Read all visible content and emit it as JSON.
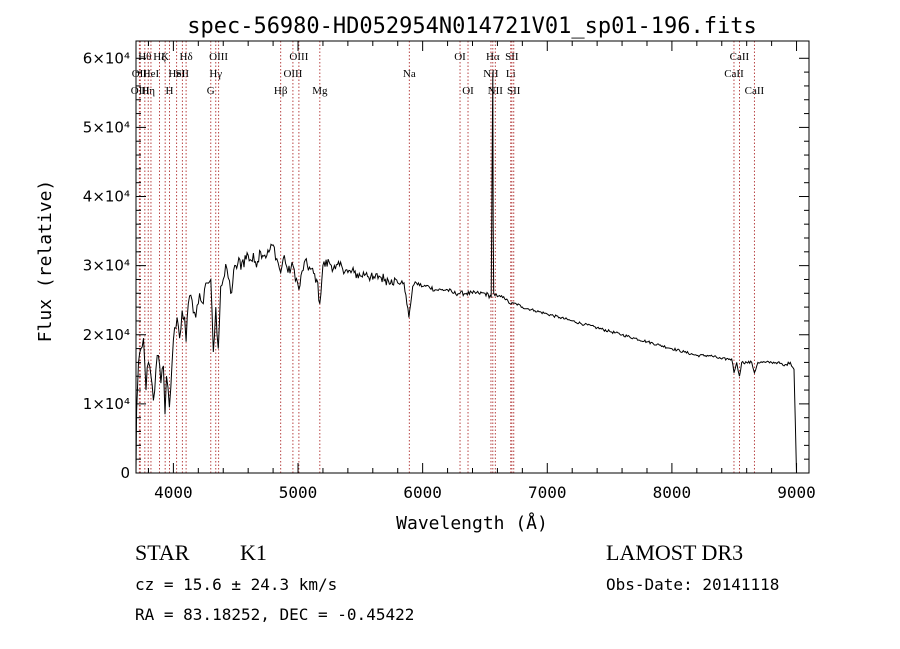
{
  "chart_data": {
    "type": "line",
    "title": "spec-56980-HD052954N014721V01_sp01-196.fits",
    "xlabel": "Wavelength (Å)",
    "ylabel": "Flux (relative)",
    "xlim": [
      3700,
      9100
    ],
    "ylim": [
      0,
      62500
    ],
    "x_ticks": [
      4000,
      5000,
      6000,
      7000,
      8000,
      9000
    ],
    "y_ticks": [
      {
        "value": 0,
        "label": "0"
      },
      {
        "value": 10000,
        "label": "1×10⁴"
      },
      {
        "value": 20000,
        "label": "2×10⁴"
      },
      {
        "value": 30000,
        "label": "3×10⁴"
      },
      {
        "value": 40000,
        "label": "4×10⁴"
      },
      {
        "value": 50000,
        "label": "5×10⁴"
      },
      {
        "value": 60000,
        "label": "6×10⁴"
      }
    ],
    "series": [
      {
        "name": "flux",
        "x": [
          3700,
          3705,
          3720,
          3740,
          3760,
          3780,
          3800,
          3820,
          3840,
          3860,
          3880,
          3900,
          3920,
          3933,
          3945,
          3968,
          3990,
          4010,
          4030,
          4050,
          4070,
          4090,
          4102,
          4120,
          4150,
          4180,
          4210,
          4240,
          4270,
          4300,
          4320,
          4340,
          4360,
          4380,
          4400,
          4430,
          4460,
          4500,
          4550,
          4600,
          4650,
          4700,
          4750,
          4800,
          4830,
          4861,
          4890,
          4920,
          4960,
          5007,
          5050,
          5100,
          5150,
          5175,
          5200,
          5250,
          5300,
          5350,
          5400,
          5450,
          5500,
          5550,
          5600,
          5650,
          5700,
          5750,
          5800,
          5850,
          5890,
          5896,
          5920,
          5950,
          6000,
          6050,
          6100,
          6150,
          6200,
          6250,
          6300,
          6350,
          6400,
          6450,
          6500,
          6550,
          6560,
          6563,
          6566,
          6570,
          6600,
          6650,
          6700,
          6750,
          6800,
          6900,
          7000,
          7100,
          7200,
          7300,
          7400,
          7500,
          7600,
          7700,
          7800,
          7900,
          8000,
          8100,
          8200,
          8300,
          8400,
          8480,
          8498,
          8520,
          8542,
          8560,
          8600,
          8640,
          8662,
          8690,
          8750,
          8800,
          8850,
          8900,
          8950,
          8980,
          9000
        ],
        "values": [
          0,
          9000,
          16000,
          18000,
          19500,
          12000,
          16000,
          14000,
          10500,
          15000,
          17000,
          13000,
          15500,
          8500,
          14000,
          9500,
          16000,
          21000,
          22500,
          19500,
          23500,
          22500,
          19000,
          24500,
          25000,
          22500,
          26000,
          24500,
          27500,
          28000,
          17500,
          24000,
          18000,
          27000,
          28000,
          29500,
          26000,
          30000,
          30500,
          31500,
          30500,
          32000,
          31500,
          33000,
          31000,
          29000,
          31500,
          29000,
          30000,
          26500,
          30500,
          29500,
          28000,
          24500,
          30000,
          30500,
          29500,
          30000,
          29000,
          29000,
          28500,
          29000,
          28000,
          28500,
          28000,
          28000,
          27500,
          27500,
          22500,
          23500,
          27000,
          27500,
          27000,
          27000,
          26500,
          26500,
          26500,
          26000,
          26000,
          26000,
          26000,
          26000,
          26000,
          25500,
          50000,
          58000,
          36000,
          26000,
          25500,
          25500,
          24500,
          24500,
          24000,
          23500,
          23000,
          22500,
          22000,
          21500,
          21000,
          20500,
          20000,
          19500,
          19000,
          18500,
          18000,
          17500,
          17000,
          17000,
          16500,
          16500,
          14500,
          16000,
          14000,
          16000,
          16000,
          16000,
          14500,
          16000,
          16000,
          16000,
          16000,
          15500,
          16000,
          15000,
          0
        ]
      }
    ],
    "lines": [
      {
        "x": 3727,
        "label": "OII",
        "row": 1
      },
      {
        "x": 3734,
        "label": "OIII",
        "row": 2
      },
      {
        "x": 3771,
        "label": "Hθ",
        "row": 0
      },
      {
        "x": 3798,
        "label": "Hη",
        "row": 2
      },
      {
        "x": 3820,
        "label": "HeI",
        "row": 1
      },
      {
        "x": 3889,
        "label": "Hζ",
        "row": 0
      },
      {
        "x": 3934,
        "label": "K",
        "row": 0
      },
      {
        "x": 3969,
        "label": "H",
        "row": 2
      },
      {
        "x": 4026,
        "label": "HeI",
        "row": 1
      },
      {
        "x": 4072,
        "label": "SII",
        "row": 1
      },
      {
        "x": 4102,
        "label": "Hδ",
        "row": 0
      },
      {
        "x": 4300,
        "label": "G",
        "row": 2
      },
      {
        "x": 4340,
        "label": "Hγ",
        "row": 1
      },
      {
        "x": 4363,
        "label": "OIII",
        "row": 0
      },
      {
        "x": 4861,
        "label": "Hβ",
        "row": 2
      },
      {
        "x": 4959,
        "label": "OIII",
        "row": 1
      },
      {
        "x": 5007,
        "label": "OIII",
        "row": 0
      },
      {
        "x": 5175,
        "label": "Mg",
        "row": 2
      },
      {
        "x": 5893,
        "label": "Na",
        "row": 1
      },
      {
        "x": 6300,
        "label": "OI",
        "row": 0
      },
      {
        "x": 6364,
        "label": "OI",
        "row": 2
      },
      {
        "x": 6548,
        "label": "NII",
        "row": 1
      },
      {
        "x": 6563,
        "label": "Hα",
        "row": 0
      },
      {
        "x": 6583,
        "label": "NII",
        "row": 2
      },
      {
        "x": 6707,
        "label": "Li",
        "row": 1
      },
      {
        "x": 6716,
        "label": "SII",
        "row": 0
      },
      {
        "x": 6731,
        "label": "SII",
        "row": 2
      },
      {
        "x": 8498,
        "label": "CaII",
        "row": 1
      },
      {
        "x": 8542,
        "label": "CaII",
        "row": 0
      },
      {
        "x": 8662,
        "label": "CaII",
        "row": 2
      }
    ]
  },
  "info": {
    "object_class": "STAR",
    "subclass": "K1",
    "survey": "LAMOST DR3",
    "cz": "cz = 15.6 ± 24.3 km/s",
    "obs_date": "Obs-Date: 20141118",
    "radec": "RA =  83.18252, DEC =  -0.45422"
  }
}
